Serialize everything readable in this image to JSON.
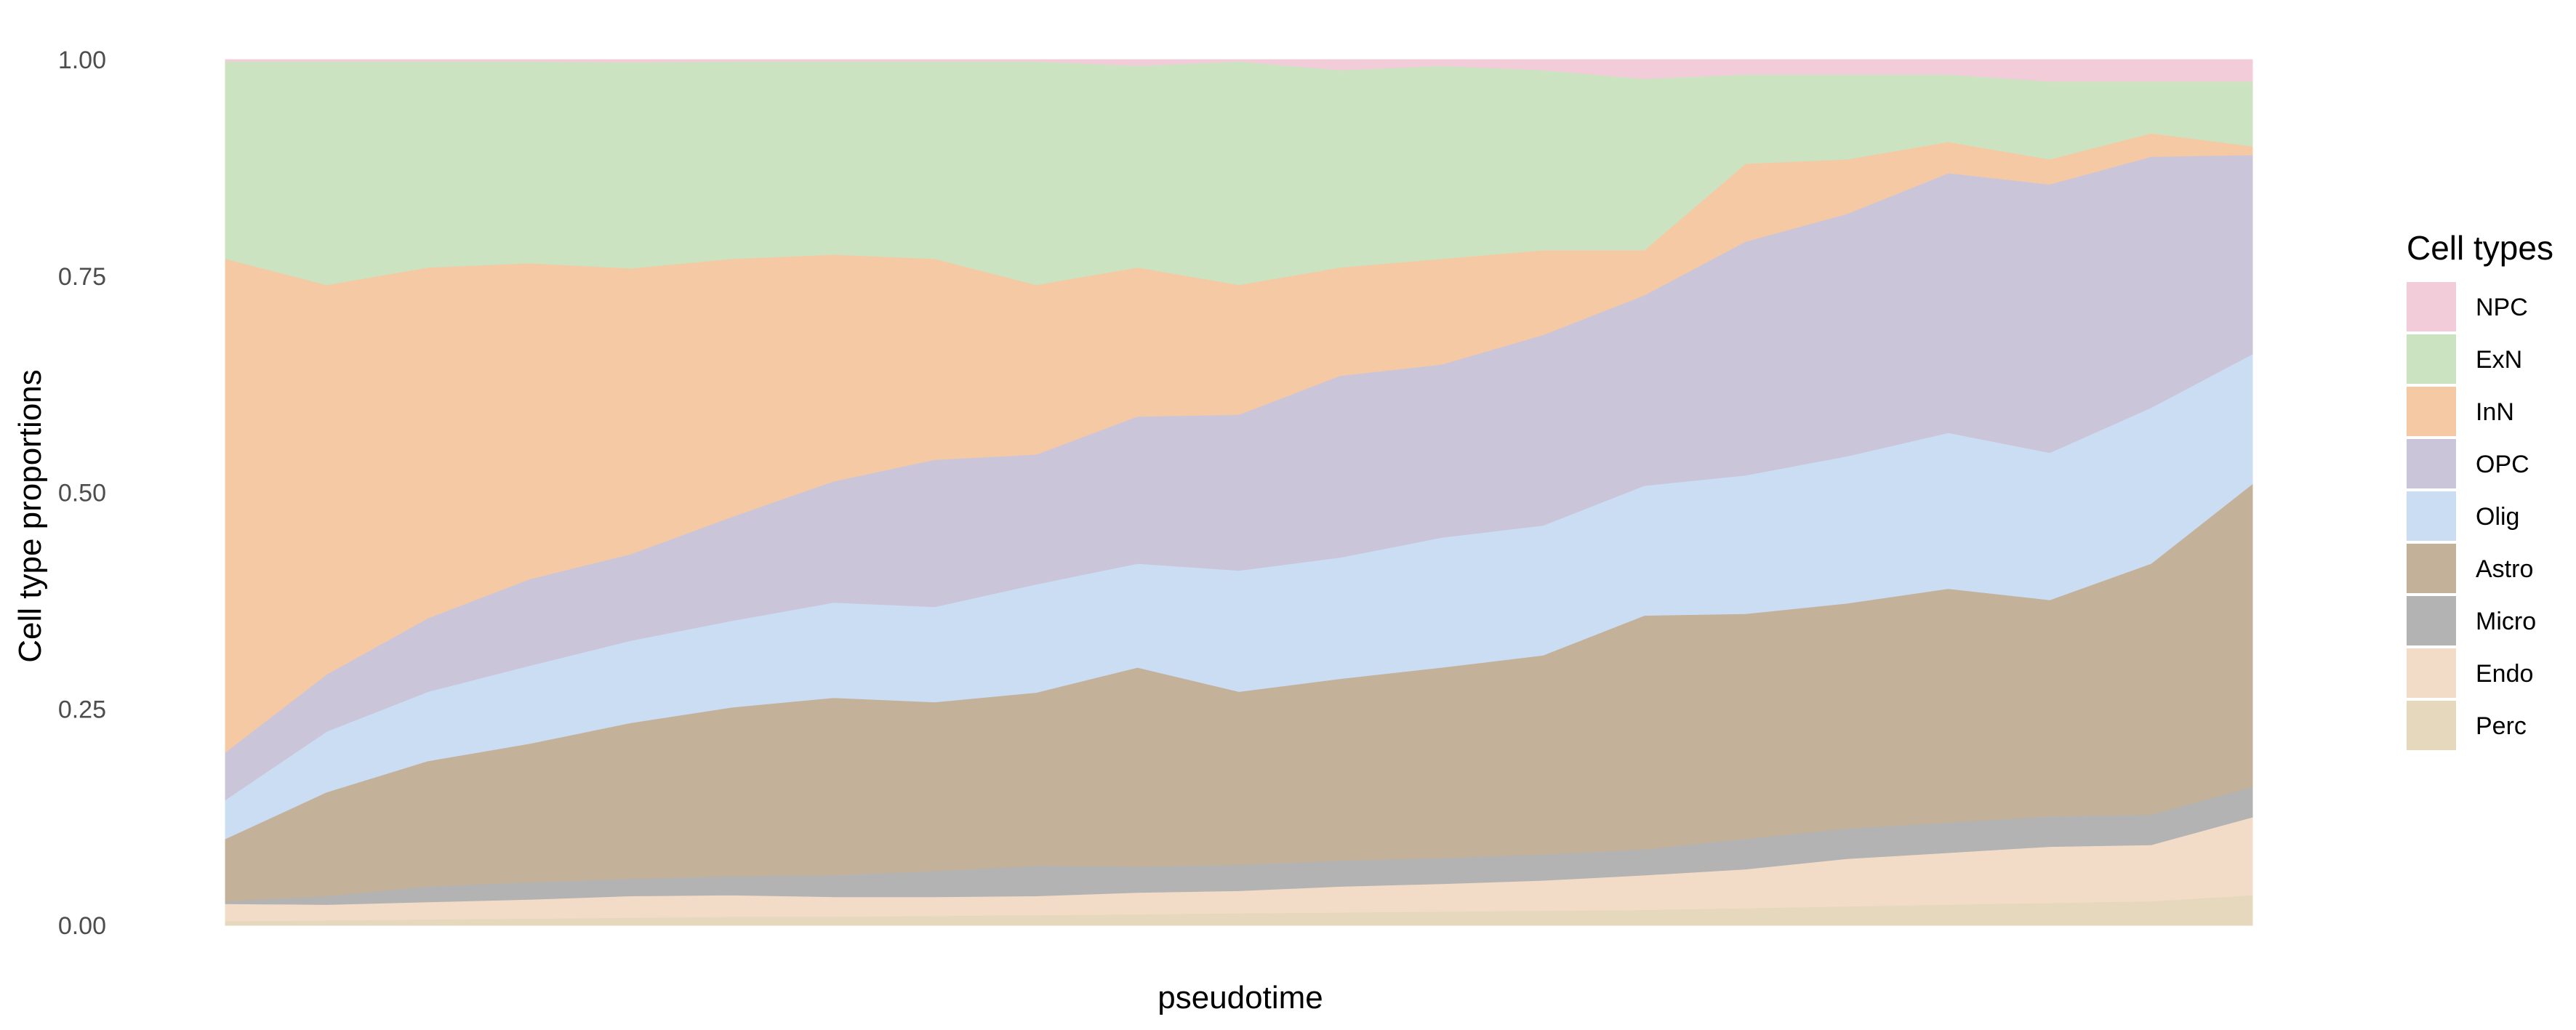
{
  "chart_data": {
    "type": "area",
    "stacked": true,
    "xlabel": "pseudotime",
    "ylabel": "Cell type proportions",
    "ylim": [
      0,
      1
    ],
    "yticks": [
      "0.00",
      "0.25",
      "0.50",
      "0.75",
      "1.00"
    ],
    "x_ticks_shown": false,
    "grid": false,
    "legend": {
      "title": "Cell types",
      "placement": "right"
    },
    "x": [
      0,
      0.05,
      0.1,
      0.15,
      0.2,
      0.25,
      0.3,
      0.35,
      0.4,
      0.45,
      0.5,
      0.55,
      0.6,
      0.65,
      0.7,
      0.75,
      0.8,
      0.85,
      0.9,
      0.95,
      1.0
    ],
    "series": [
      {
        "name": "Perc",
        "color": "#E5D8BD",
        "values": [
          0.005,
          0.006,
          0.007,
          0.008,
          0.009,
          0.01,
          0.01,
          0.011,
          0.012,
          0.013,
          0.014,
          0.015,
          0.016,
          0.017,
          0.018,
          0.02,
          0.022,
          0.024,
          0.026,
          0.028,
          0.035
        ]
      },
      {
        "name": "Endo",
        "color": "#F2DCC8",
        "values": [
          0.02,
          0.018,
          0.02,
          0.022,
          0.025,
          0.025,
          0.023,
          0.022,
          0.022,
          0.025,
          0.026,
          0.03,
          0.032,
          0.035,
          0.04,
          0.045,
          0.055,
          0.06,
          0.065,
          0.065,
          0.09
        ]
      },
      {
        "name": "Micro",
        "color": "#B3B3B3",
        "values": [
          0.003,
          0.01,
          0.018,
          0.02,
          0.02,
          0.022,
          0.025,
          0.03,
          0.035,
          0.03,
          0.03,
          0.03,
          0.03,
          0.03,
          0.03,
          0.035,
          0.035,
          0.035,
          0.035,
          0.035,
          0.035
        ]
      },
      {
        "name": "Astro",
        "color": "#C4B19A",
        "values": [
          0.072,
          0.12,
          0.145,
          0.16,
          0.18,
          0.195,
          0.205,
          0.195,
          0.2,
          0.23,
          0.2,
          0.21,
          0.22,
          0.23,
          0.27,
          0.26,
          0.26,
          0.27,
          0.25,
          0.29,
          0.35
        ]
      },
      {
        "name": "Olig",
        "color": "#CBDDF3",
        "values": [
          0.045,
          0.07,
          0.08,
          0.09,
          0.095,
          0.1,
          0.11,
          0.11,
          0.125,
          0.12,
          0.14,
          0.14,
          0.15,
          0.15,
          0.15,
          0.16,
          0.17,
          0.18,
          0.17,
          0.18,
          0.15
        ]
      },
      {
        "name": "OPC",
        "color": "#CBC5DA",
        "values": [
          0.055,
          0.066,
          0.085,
          0.1,
          0.1,
          0.12,
          0.14,
          0.17,
          0.15,
          0.17,
          0.18,
          0.21,
          0.2,
          0.22,
          0.22,
          0.27,
          0.28,
          0.3,
          0.31,
          0.29,
          0.23
        ]
      },
      {
        "name": "InN",
        "color": "#F5C9A4",
        "values": [
          0.57,
          0.45,
          0.405,
          0.365,
          0.33,
          0.298,
          0.262,
          0.232,
          0.196,
          0.172,
          0.15,
          0.125,
          0.122,
          0.098,
          0.052,
          0.09,
          0.063,
          0.036,
          0.029,
          0.027,
          0.01
        ]
      },
      {
        "name": "ExN",
        "color": "#CCE3C2",
        "values": [
          0.228,
          0.258,
          0.238,
          0.233,
          0.238,
          0.228,
          0.223,
          0.228,
          0.258,
          0.233,
          0.258,
          0.228,
          0.223,
          0.208,
          0.198,
          0.103,
          0.098,
          0.078,
          0.09,
          0.06,
          0.075
        ]
      },
      {
        "name": "NPC",
        "color": "#F2CCD8",
        "values": [
          0.002,
          0.002,
          0.002,
          0.002,
          0.003,
          0.002,
          0.002,
          0.002,
          0.002,
          0.007,
          0.002,
          0.012,
          0.007,
          0.012,
          0.022,
          0.017,
          0.017,
          0.017,
          0.025,
          0.025,
          0.025
        ]
      }
    ]
  }
}
